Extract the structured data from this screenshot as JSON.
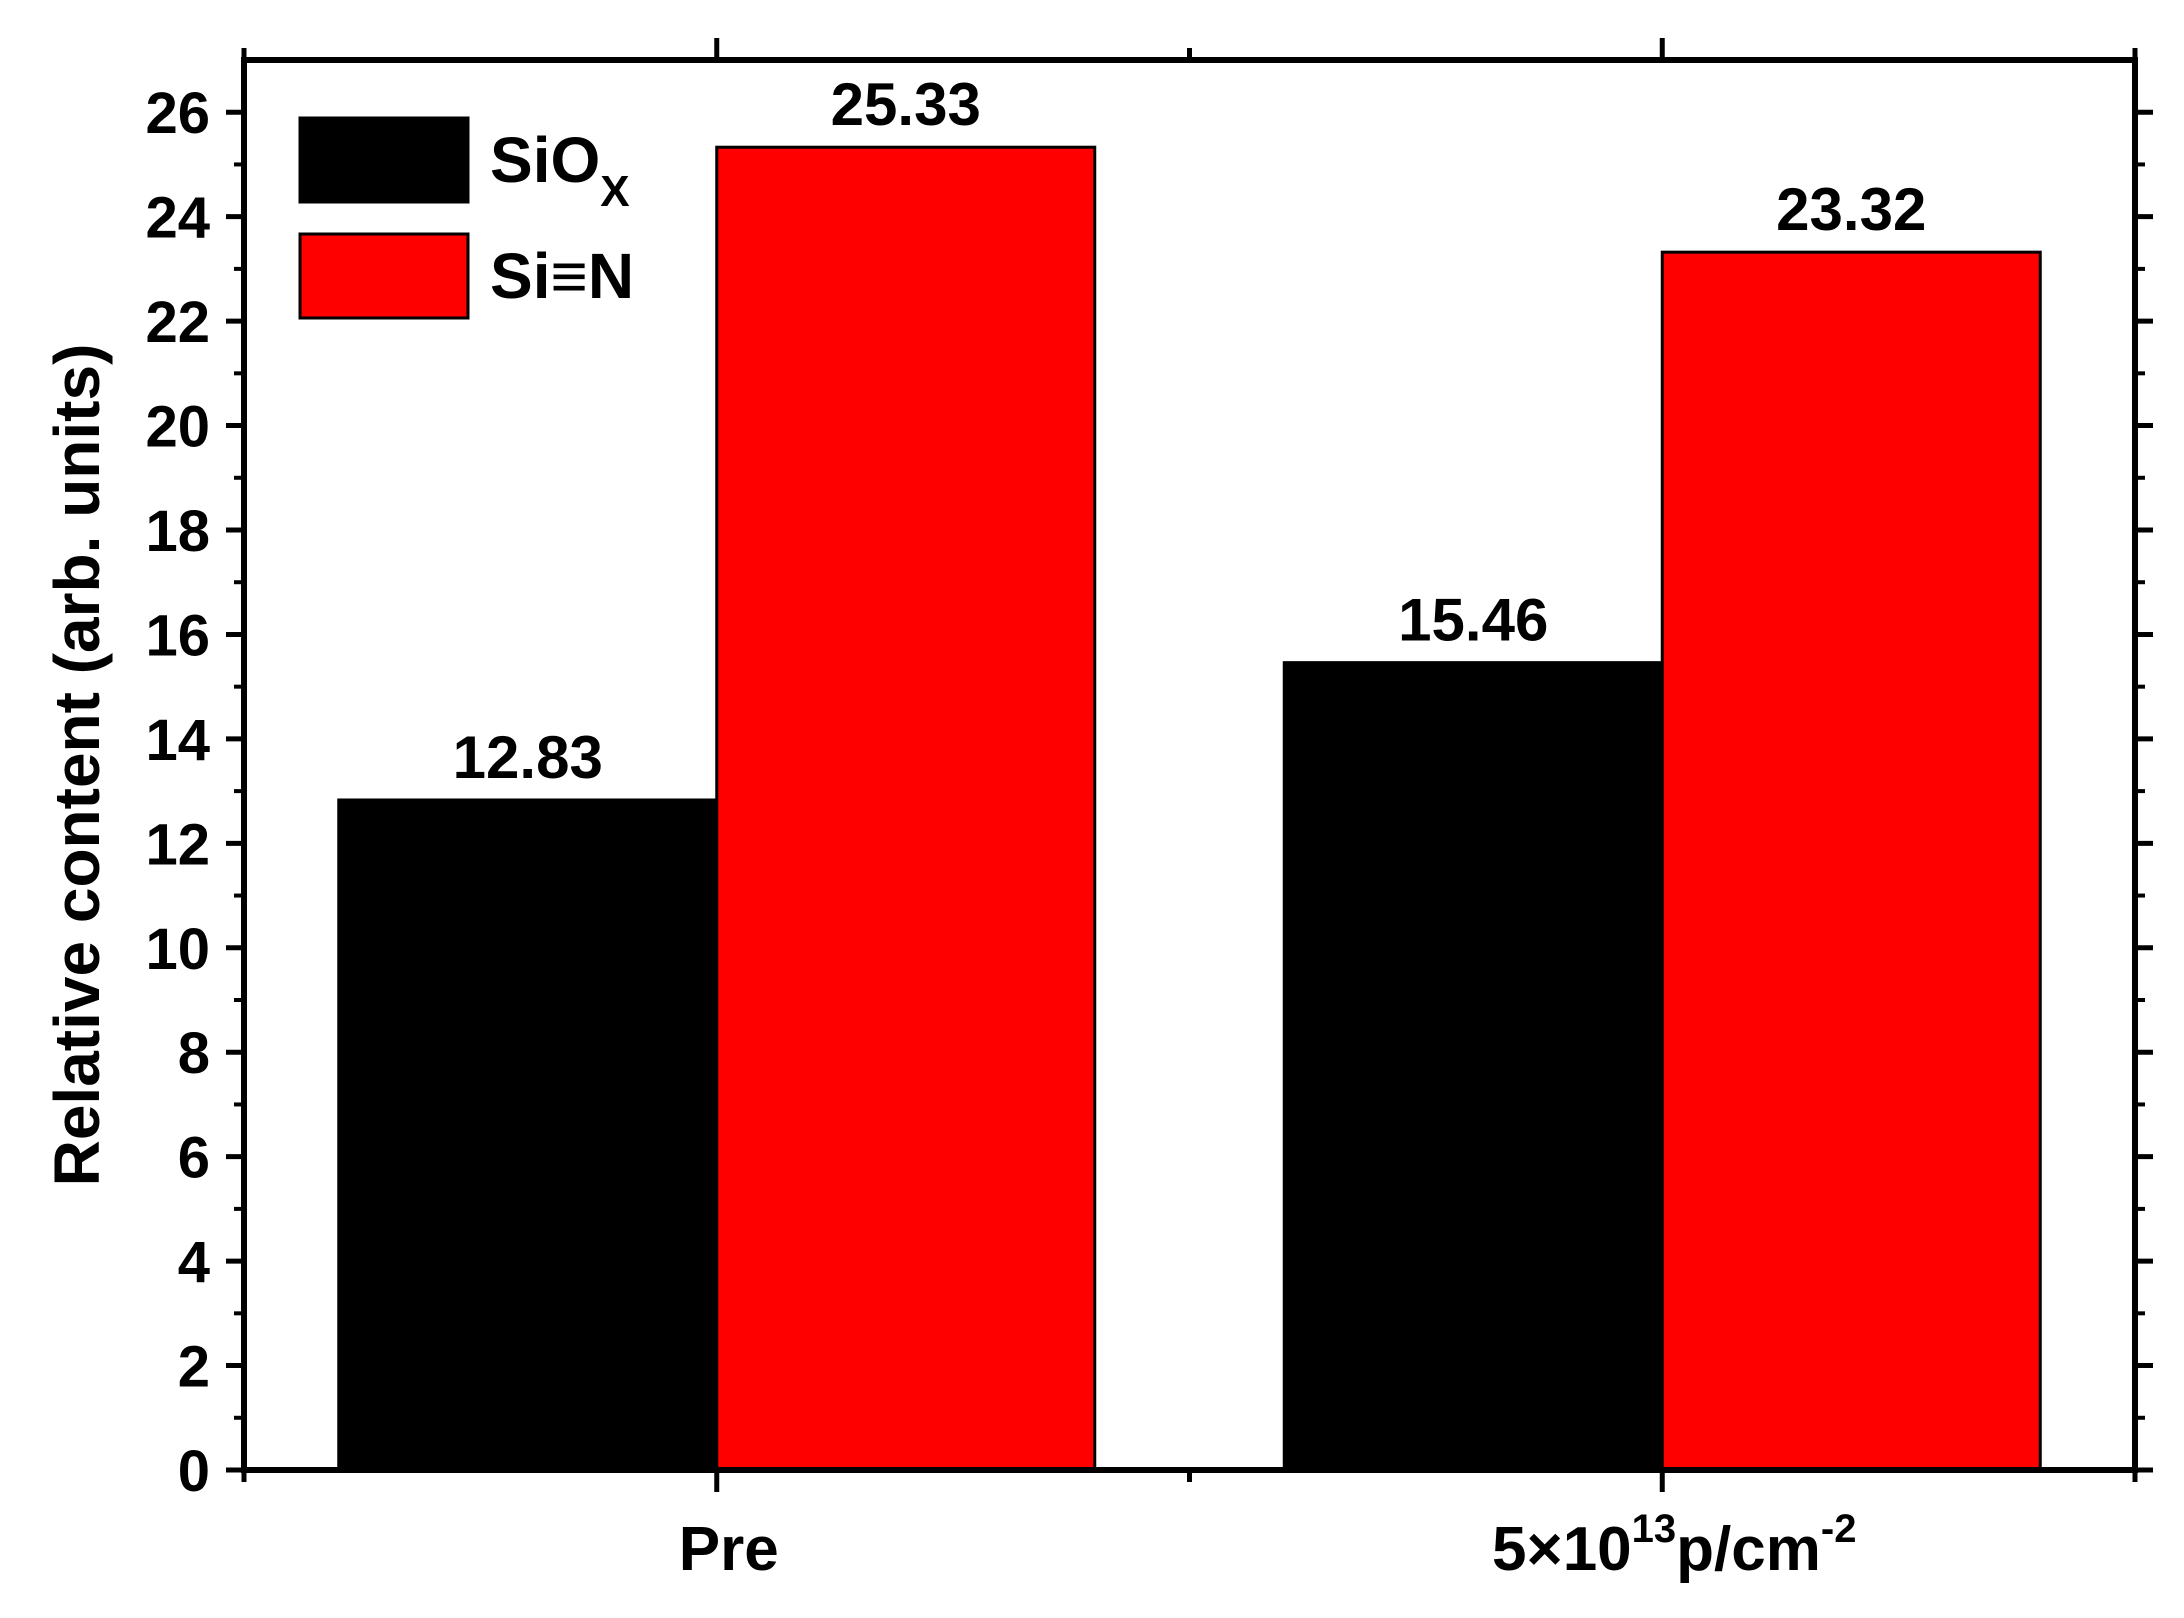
{
  "chart_data": {
    "type": "bar",
    "categories": [
      {
        "label": "Pre",
        "base": "",
        "sup": "",
        "tail": "",
        "sup2": ""
      },
      {
        "label": "",
        "base": "5×10",
        "sup": "13",
        "tail": "p/cm",
        "sup2": "-2"
      }
    ],
    "series": [
      {
        "name": "SiO",
        "name_sub": "X",
        "color": "#000000",
        "values": [
          12.83,
          15.46
        ],
        "labels": [
          "12.83",
          "15.46"
        ]
      },
      {
        "name": "Si≡N",
        "name_sub": "",
        "color": "#ff0000",
        "values": [
          25.33,
          23.32
        ],
        "labels": [
          "25.33",
          "23.32"
        ]
      }
    ],
    "ylabel": "Relative content (arb. units)",
    "ylim": [
      0,
      27
    ],
    "yticks": [
      0,
      2,
      4,
      6,
      8,
      10,
      12,
      14,
      16,
      18,
      20,
      22,
      24,
      26
    ],
    "grid": false,
    "legend_position": "top-left"
  }
}
